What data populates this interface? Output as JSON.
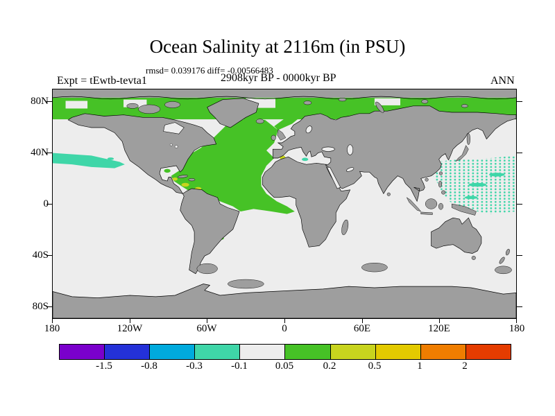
{
  "header": {
    "title": "Ocean Salinity at 2116m (in PSU)",
    "stats_line": "rmsd= 0.039176 diff= -0.00566483",
    "period_line": "2908kyr BP - 0000kyr BP",
    "expt_label": "Expt = tEwtb-tevta1",
    "season_label": "ANN"
  },
  "axes": {
    "lat_labels": [
      "80N",
      "40N",
      "0",
      "40S",
      "80S"
    ],
    "lon_labels": [
      "180",
      "120W",
      "60W",
      "0",
      "60E",
      "120E",
      "180"
    ]
  },
  "colorbar": {
    "levels": [
      "-1.5",
      "-0.8",
      "-0.3",
      "-0.1",
      "0.05",
      "0.2",
      "0.5",
      "1",
      "2"
    ],
    "colors": [
      "#7a00cc",
      "#2431d8",
      "#00aadd",
      "#3fd6a8",
      "#ededed",
      "#46c226",
      "#c8d41e",
      "#e3ca00",
      "#ef7d00",
      "#e53c00"
    ]
  },
  "map_colors": {
    "land": "#9e9e9e",
    "ocean_near_zero": "#ededed",
    "positive_anomaly": "#46c226",
    "negative_anomaly": "#3fd6a8",
    "coastline": "#000000"
  },
  "chart_data": {
    "type": "heatmap",
    "title": "Ocean Salinity at 2116m (in PSU)",
    "stats": {
      "rmsd": 0.039176,
      "diff": -0.00566483
    },
    "difference_of": "2908kyr BP - 0000kyr BP",
    "experiment": "tEwtb-tevta1",
    "season": "ANN",
    "variable": "ocean salinity difference",
    "units": "PSU",
    "depth_m": 2116,
    "projection": "equirectangular global map",
    "x_axis": {
      "label": "longitude",
      "ticks": [
        "180",
        "120W",
        "60W",
        "0",
        "60E",
        "120E",
        "180"
      ],
      "range_deg": [
        -180,
        180
      ]
    },
    "y_axis": {
      "label": "latitude",
      "ticks": [
        "80N",
        "40N",
        "0",
        "40S",
        "80S"
      ],
      "range_deg": [
        -90,
        90
      ]
    },
    "colorbar": {
      "orientation": "horizontal",
      "boundary_levels_psu": [
        -1.5,
        -0.8,
        -0.3,
        -0.1,
        0.05,
        0.2,
        0.5,
        1,
        2
      ],
      "n_bins": 10
    },
    "notable_regions": [
      {
        "region": "North Atlantic from equator to Nordic Seas",
        "value_psu": "0.05 to 0.2 (positive, green)"
      },
      {
        "region": "Arctic Ocean margin band",
        "value_psu": "0.05 to 0.2 (positive, green)"
      },
      {
        "region": "Western tropical and subtropical North Pacific (stippled)",
        "value_psu": "-0.3 to -0.1 (negative, teal)"
      },
      {
        "region": "Northeast Pacific near 30-40N",
        "value_psu": "-0.3 to -0.1 (negative, teal)"
      },
      {
        "region": "Caribbean and western Mediterranean spots",
        "value_psu": "0.2 to 0.5 (yellow-green)"
      },
      {
        "region": "Remaining ocean",
        "value_psu": "-0.1 to 0.05 (near zero, white)"
      },
      {
        "region": "Continents and some Southern Ocean patches",
        "value_psu": "land / no data (gray)"
      }
    ]
  }
}
